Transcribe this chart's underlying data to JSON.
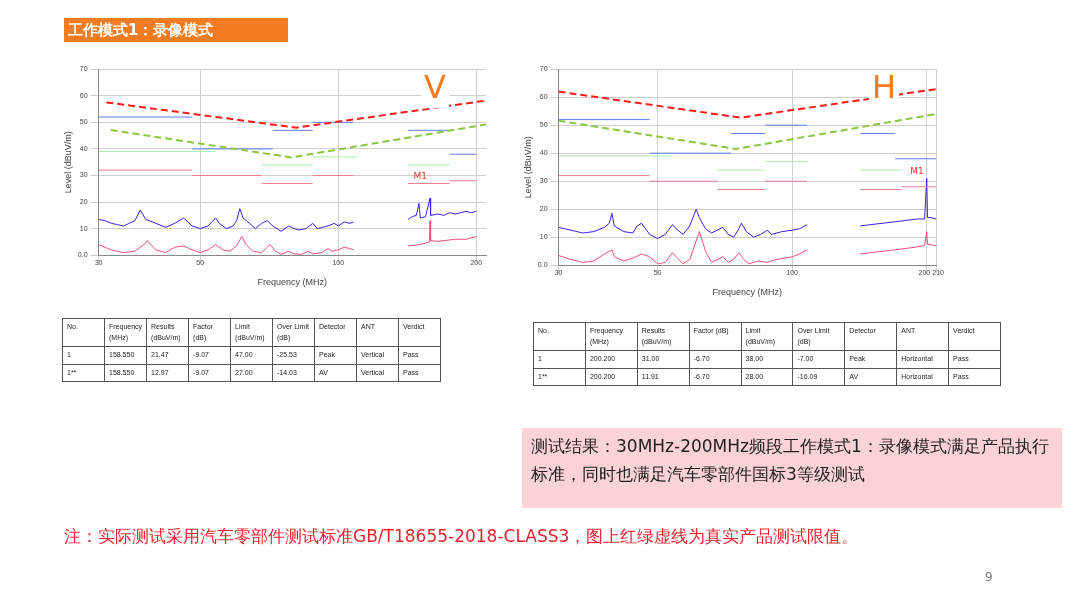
{
  "chart_data": [
    {
      "type": "line",
      "subtitle": "V",
      "xlabel": "Frequency (MHz)",
      "ylabel": "Level (dBuV/m)",
      "log": "x",
      "grid": true,
      "marker": "none",
      "xlim": [
        30,
        210
      ],
      "xticks": [
        30,
        50,
        100,
        200
      ],
      "ylim": [
        0,
        70
      ],
      "yticks": [
        {
          "value": 0,
          "label": "0.0"
        },
        10,
        20,
        30,
        40,
        50,
        60,
        70
      ],
      "series": [
        {
          "color": "#ff1a1a",
          "line_style": "dashed",
          "x": [
            31.2,
            81,
            210
          ],
          "values": [
            57.5,
            48,
            58.2
          ]
        },
        {
          "color": "#8cc63f",
          "line_style": "dashed",
          "x": [
            31.9,
            79,
            210
          ],
          "values": [
            47.1,
            36.8,
            49.2
          ]
        },
        {
          "color": "#5b7cf0",
          "x": [
            30,
            48
          ],
          "values": [
            52,
            52
          ]
        },
        {
          "color": "#5b7cf0",
          "x": [
            48,
            72
          ],
          "values": [
            40,
            40
          ]
        },
        {
          "color": "#5b7cf0",
          "x": [
            72,
            88
          ],
          "values": [
            47,
            47
          ]
        },
        {
          "color": "#5b7cf0",
          "x": [
            88,
            108
          ],
          "values": [
            50,
            50
          ]
        },
        {
          "color": "#5b7cf0",
          "x": [
            142,
            175
          ],
          "values": [
            47,
            47
          ]
        },
        {
          "color": "#5b7cf0",
          "x": [
            175,
            200
          ],
          "values": [
            38,
            38
          ]
        },
        {
          "color": "#a8eca8",
          "x": [
            30,
            54
          ],
          "values": [
            39,
            39
          ]
        },
        {
          "color": "#a8eca8",
          "x": [
            68,
            88
          ],
          "values": [
            34,
            34
          ]
        },
        {
          "color": "#a8eca8",
          "x": [
            88,
            110
          ],
          "values": [
            37,
            37
          ]
        },
        {
          "color": "#a8eca8",
          "x": [
            142,
            175
          ],
          "values": [
            34,
            34
          ]
        },
        {
          "color": "#f07a90",
          "x": [
            30,
            48
          ],
          "values": [
            32,
            32
          ]
        },
        {
          "color": "#f07a90",
          "x": [
            48,
            68
          ],
          "values": [
            30,
            30
          ]
        },
        {
          "color": "#f07a90",
          "x": [
            68,
            88
          ],
          "values": [
            27,
            27
          ]
        },
        {
          "color": "#f07a90",
          "x": [
            88,
            108
          ],
          "values": [
            30,
            30
          ]
        },
        {
          "color": "#f07a90",
          "x": [
            142,
            175
          ],
          "values": [
            27,
            27
          ]
        },
        {
          "color": "#f07a90",
          "x": [
            175,
            200
          ],
          "values": [
            28,
            28
          ]
        },
        {
          "color": "#3b1ee6",
          "x": [
            30,
            31,
            32,
            33,
            34,
            35,
            36,
            37,
            38,
            40,
            42,
            44,
            46,
            47,
            48,
            50,
            52,
            54,
            55,
            57,
            59,
            60,
            61,
            62,
            64,
            66,
            68,
            70,
            72,
            75,
            78,
            80,
            82,
            85,
            88,
            90,
            95,
            98,
            100,
            103,
            106,
            108,
            120,
            142,
            145,
            148,
            150,
            151,
            155,
            158.55,
            159,
            165,
            170,
            175,
            180,
            185,
            190,
            195,
            200
          ],
          "values": [
            13.5,
            13,
            12,
            11.5,
            11,
            12,
            13,
            17,
            13.5,
            12,
            10.5,
            12,
            14,
            12.5,
            11,
            10,
            11,
            14,
            12,
            10,
            11,
            13,
            17.5,
            14,
            12,
            10,
            12,
            13,
            11,
            9,
            11,
            10,
            9.5,
            10,
            12,
            10,
            11,
            12,
            11,
            12.5,
            12,
            12.5,
            null,
            13.5,
            14.5,
            15,
            19.5,
            14,
            14.5,
            21.5,
            15,
            15.5,
            15,
            16,
            15.5,
            16,
            16.5,
            16,
            16.5
          ]
        },
        {
          "color": "#f0507a",
          "x": [
            30,
            32,
            34,
            36,
            38,
            38.3,
            40,
            42,
            44,
            46,
            48,
            50,
            52,
            54,
            56,
            58,
            60,
            61.6,
            63,
            65,
            68,
            70,
            71,
            73,
            75,
            78,
            80,
            83,
            86,
            88,
            92,
            95,
            97,
            100,
            103,
            106,
            108,
            120,
            142,
            148,
            155,
            158,
            158.55,
            159,
            165,
            170,
            180,
            190,
            200
          ],
          "values": [
            4,
            2,
            1,
            1.5,
            4.5,
            5.5,
            2,
            1,
            3,
            3.5,
            2,
            1,
            2,
            4,
            2,
            1.5,
            3.5,
            7,
            4,
            1.5,
            1,
            3,
            4,
            1.5,
            0.3,
            1.5,
            0.5,
            0.3,
            1.5,
            0.5,
            1,
            2.5,
            1.5,
            2,
            3,
            2.5,
            2,
            null,
            3.5,
            3.8,
            4.5,
            5,
            13,
            5.5,
            5.2,
            5.5,
            6,
            6,
            7
          ]
        }
      ],
      "annotations": [
        {
          "text": "M1",
          "x": 158.55,
          "y": 27
        },
        "No.",
        "Frequency (MHz)",
        "Results (dBuV/m)",
        "Factor (dB)",
        "Limit (dBuV/m)",
        "Over Limit (dB)",
        "Detector",
        "ANT",
        "Verdict",
        "1",
        "158.550",
        "21.47",
        "-9.07",
        "47.00",
        "-25.53",
        "Peak",
        "Vertical",
        "Pass",
        "1**",
        "158.550",
        "12.97",
        "-9.07",
        "27.00",
        "-14.03",
        "AV",
        "Vertical",
        "Pass"
      ]
    },
    {
      "type": "line",
      "subtitle": "H",
      "xlabel": "Frequency (MHz)",
      "ylabel": "Level (dBuV/m)",
      "log": "x",
      "grid": true,
      "marker": "none",
      "xlim": [
        30,
        210
      ],
      "xticks": [
        30,
        50,
        100,
        200,
        210
      ],
      "ylim": [
        0,
        70
      ],
      "yticks": [
        {
          "value": 0,
          "label": "0.0"
        },
        10,
        20,
        30,
        40,
        50,
        60,
        70
      ],
      "series": [
        {
          "color": "#ff1a1a",
          "line_style": "dashed",
          "x": [
            30,
            76.6,
            210
          ],
          "values": [
            62,
            52.7,
            62.9
          ]
        },
        {
          "color": "#8cc63f",
          "line_style": "dashed",
          "x": [
            30,
            74.9,
            210
          ],
          "values": [
            51.6,
            41.5,
            54
          ]
        },
        {
          "color": "#5b7cf0",
          "x": [
            30,
            48
          ],
          "values": [
            52,
            52
          ]
        },
        {
          "color": "#5b7cf0",
          "x": [
            48,
            73
          ],
          "values": [
            40,
            40
          ]
        },
        {
          "color": "#5b7cf0",
          "x": [
            73,
            87
          ],
          "values": [
            47,
            47
          ]
        },
        {
          "color": "#5b7cf0",
          "x": [
            87,
            108
          ],
          "values": [
            50,
            50
          ]
        },
        {
          "color": "#5b7cf0",
          "x": [
            142,
            170
          ],
          "values": [
            47,
            47
          ]
        },
        {
          "color": "#5b7cf0",
          "x": [
            170,
            210
          ],
          "values": [
            38,
            38
          ]
        },
        {
          "color": "#a8eca8",
          "x": [
            30,
            54
          ],
          "values": [
            39,
            39
          ]
        },
        {
          "color": "#a8eca8",
          "x": [
            68,
            87
          ],
          "values": [
            34,
            34
          ]
        },
        {
          "color": "#a8eca8",
          "x": [
            87,
            108
          ],
          "values": [
            37,
            37
          ]
        },
        {
          "color": "#a8eca8",
          "x": [
            142,
            176
          ],
          "values": [
            34,
            34
          ]
        },
        {
          "color": "#f07a90",
          "x": [
            30,
            48
          ],
          "values": [
            32,
            32
          ]
        },
        {
          "color": "#f07a90",
          "x": [
            48,
            68
          ],
          "values": [
            30,
            30
          ]
        },
        {
          "color": "#f07a90",
          "x": [
            68,
            87
          ],
          "values": [
            27,
            27
          ]
        },
        {
          "color": "#f07a90",
          "x": [
            87,
            108
          ],
          "values": [
            30,
            30
          ]
        },
        {
          "color": "#f07a90",
          "x": [
            142,
            176
          ],
          "values": [
            27,
            27
          ]
        },
        {
          "color": "#f07a90",
          "x": [
            176,
            210
          ],
          "values": [
            28,
            28
          ]
        },
        {
          "color": "#3b1ee6",
          "x": [
            30,
            32,
            34,
            36,
            38,
            39,
            39.5,
            40,
            42,
            44,
            45,
            46,
            47,
            48,
            50,
            52,
            54,
            55,
            57,
            59,
            60,
            61,
            62,
            64,
            66,
            68,
            70,
            72,
            74,
            76,
            77,
            79,
            82,
            85,
            88,
            90,
            95,
            100,
            104,
            108,
            125,
            142,
            150,
            160,
            170,
            180,
            190,
            198,
            200.2,
            201,
            205,
            210
          ],
          "values": [
            13.5,
            12.5,
            11.5,
            12,
            13.5,
            15,
            18.5,
            14,
            12,
            11.5,
            14,
            15,
            13,
            11,
            9.5,
            11,
            14.5,
            13,
            11,
            14,
            17,
            20,
            17,
            13,
            11.5,
            12.5,
            13.5,
            11,
            10,
            13,
            15,
            12,
            10,
            11,
            12.5,
            11,
            12,
            12.5,
            13,
            14.5,
            null,
            14,
            14.5,
            15,
            15.5,
            16,
            16.5,
            16.5,
            31,
            17,
            17,
            16.5
          ]
        },
        {
          "color": "#f0507a",
          "x": [
            30,
            32,
            34,
            36,
            38,
            39.5,
            40,
            42,
            44,
            46,
            48,
            50,
            52,
            54,
            55,
            57,
            59,
            62,
            64,
            66,
            68,
            70,
            72,
            74,
            76,
            78,
            80,
            84,
            88,
            92,
            96,
            100,
            104,
            108,
            125,
            142,
            150,
            160,
            170,
            180,
            190,
            198,
            200.2,
            201,
            210
          ],
          "values": [
            3.5,
            2,
            1,
            1.5,
            4,
            5.5,
            3,
            1.5,
            2.5,
            4,
            3,
            0.5,
            1,
            4.5,
            3,
            0.5,
            2,
            12,
            5,
            1,
            2,
            3,
            1,
            2,
            4.5,
            2,
            0.5,
            1.5,
            1,
            2,
            2.5,
            3,
            4,
            5.5,
            null,
            4,
            4.5,
            5,
            5.5,
            6,
            6.5,
            7,
            12,
            7.5,
            7
          ]
        }
      ],
      "annotations": [
        {
          "text": "M1",
          "x": 200.2,
          "y": 31
        },
        "No.",
        "Frequency (MHz)",
        "Results (dBuV/m)",
        "Factor (dB)",
        "Limit (dBuV/m)",
        "Over Limit (dB)",
        "Detector",
        "ANT",
        "Verdict",
        "1",
        "200.200",
        "31.00",
        "-6.70",
        "38.00",
        "-7.00",
        "Peak",
        "Horizontal",
        "Pass",
        "1**",
        "200.200",
        "11.91",
        "-6.70",
        "28.00",
        "-16.09",
        "AV",
        "Horizontal",
        "Pass"
      ]
    },
    {
      "type": "other",
      "title": "工作模式1：录像模式",
      "annotations": [
        "测试结果：30MHz-200MHz频段工作模式1：录像模式满足产品执行标准，同时也满足汽车零部件国标3等级测试",
        "注：实际测试采用汽车零部件测试标准GB/T18655-2018-CLASS3，图上红绿虚线为真实产品测试限值。",
        "9"
      ]
    }
  ]
}
